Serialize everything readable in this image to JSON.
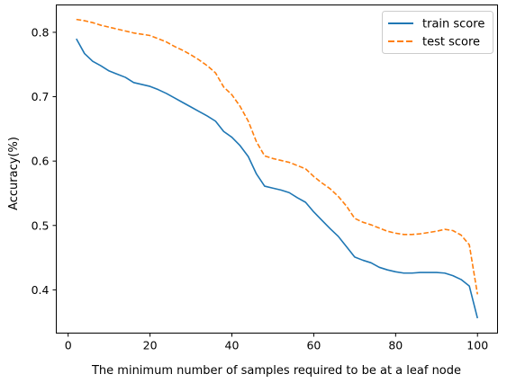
{
  "chart_data": {
    "type": "line",
    "title": "",
    "xlabel": "The minimum number of samples required to be at a leaf node",
    "ylabel": "Accuracy(%)",
    "xlim": [
      -2.9,
      104.9
    ],
    "ylim": [
      0.3328,
      0.8425
    ],
    "xticks": [
      0,
      20,
      40,
      60,
      80,
      100
    ],
    "yticks": [
      0.4,
      0.5,
      0.6,
      0.7,
      0.8
    ],
    "grid": false,
    "legend_position": "top-right",
    "x": [
      2,
      4,
      6,
      8,
      10,
      12,
      14,
      16,
      18,
      20,
      22,
      24,
      26,
      28,
      30,
      32,
      34,
      36,
      38,
      40,
      42,
      44,
      46,
      48,
      50,
      52,
      54,
      56,
      58,
      60,
      62,
      64,
      66,
      68,
      70,
      72,
      74,
      76,
      78,
      80,
      82,
      84,
      86,
      88,
      90,
      92,
      94,
      96,
      98,
      100
    ],
    "series": [
      {
        "name": "train score",
        "color": "#1f77b4",
        "style": "solid",
        "values": [
          0.79,
          0.767,
          0.755,
          0.748,
          0.74,
          0.735,
          0.73,
          0.722,
          0.719,
          0.716,
          0.711,
          0.705,
          0.698,
          0.691,
          0.684,
          0.677,
          0.67,
          0.662,
          0.646,
          0.637,
          0.624,
          0.607,
          0.58,
          0.561,
          0.558,
          0.555,
          0.551,
          0.543,
          0.536,
          0.521,
          0.508,
          0.495,
          0.483,
          0.467,
          0.451,
          0.446,
          0.442,
          0.435,
          0.431,
          0.428,
          0.426,
          0.426,
          0.427,
          0.427,
          0.427,
          0.426,
          0.422,
          0.416,
          0.406,
          0.356
        ]
      },
      {
        "name": "test score",
        "color": "#ff7f0e",
        "style": "dashed",
        "values": [
          0.82,
          0.818,
          0.815,
          0.811,
          0.808,
          0.805,
          0.802,
          0.799,
          0.797,
          0.795,
          0.79,
          0.785,
          0.778,
          0.772,
          0.765,
          0.757,
          0.748,
          0.737,
          0.715,
          0.703,
          0.685,
          0.662,
          0.63,
          0.608,
          0.604,
          0.601,
          0.598,
          0.593,
          0.588,
          0.576,
          0.566,
          0.557,
          0.545,
          0.53,
          0.511,
          0.505,
          0.501,
          0.496,
          0.491,
          0.488,
          0.486,
          0.486,
          0.487,
          0.489,
          0.491,
          0.494,
          0.492,
          0.485,
          0.47,
          0.393
        ]
      }
    ]
  }
}
